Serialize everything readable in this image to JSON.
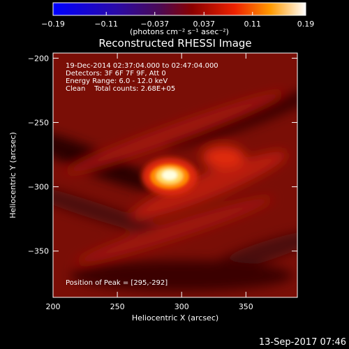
{
  "chart_data": {
    "type": "heatmap",
    "title": "Reconstructed RHESSI Image",
    "xlabel": "Heliocentric X (arcsec)",
    "ylabel": "Heliocentric Y (arcsec)",
    "xlim": [
      200,
      390
    ],
    "ylim": [
      -386,
      -196
    ],
    "x_ticks": [
      200,
      250,
      300,
      350
    ],
    "x_tick_labels": [
      "200",
      "250",
      "300",
      "350"
    ],
    "y_ticks": [
      -200,
      -250,
      -300,
      -350
    ],
    "y_tick_labels": [
      "−200",
      "−250",
      "−300",
      "−350"
    ],
    "colorbar": {
      "min": -0.19,
      "max": 0.19,
      "ticks": [
        -0.19,
        -0.11,
        -0.037,
        0.037,
        0.11,
        0.19
      ],
      "tick_labels": [
        "−0.19",
        "−0.11",
        "−0.037",
        "0.037",
        "0.11",
        "0.19"
      ],
      "unit_label": "(photons cm⁻² s⁻¹ asec⁻²)",
      "colormap": "rhessi-heat"
    },
    "peak": {
      "x": 295,
      "y": -292,
      "value": 0.19
    },
    "annotations": [
      "19-Dec-2014 02:37:04.000 to 02:47:04.000",
      "Detectors: 3F 6F 7F 9F, Att 0",
      "Energy Range: 6.0 - 12.0 keV",
      "Clean    Total counts: 2.68E+05"
    ],
    "peak_label": "Position of Peak = [295,-292]",
    "background_value": 0.055
  },
  "footer": {
    "timestamp": "13-Sep-2017 07:46"
  },
  "colors": {
    "background": "#000000",
    "text": "#ffffff"
  }
}
